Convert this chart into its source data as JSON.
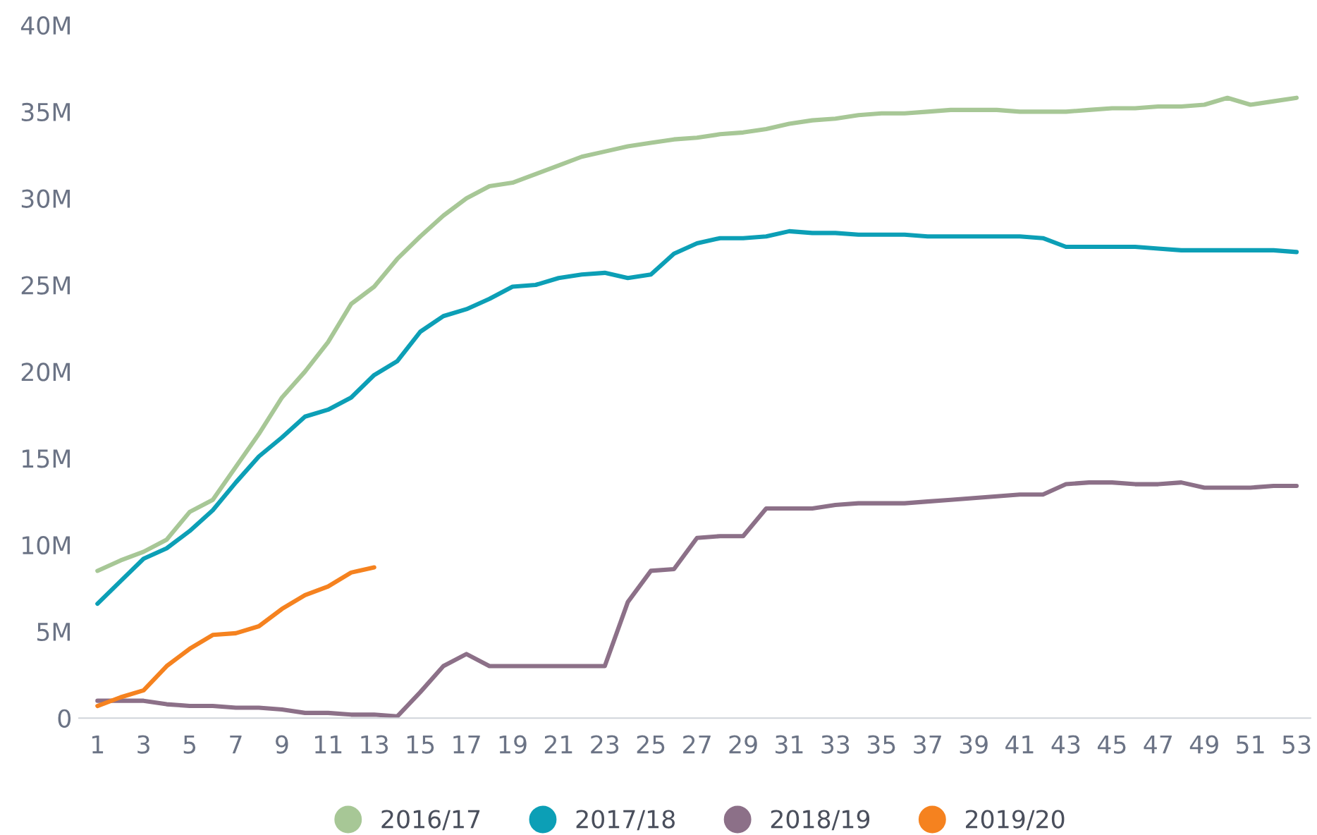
{
  "chart_data": {
    "type": "line",
    "x": [
      1,
      2,
      3,
      4,
      5,
      6,
      7,
      8,
      9,
      10,
      11,
      12,
      13,
      14,
      15,
      16,
      17,
      18,
      19,
      20,
      21,
      22,
      23,
      24,
      25,
      26,
      27,
      28,
      29,
      30,
      31,
      32,
      33,
      34,
      35,
      36,
      37,
      38,
      39,
      40,
      41,
      42,
      43,
      44,
      45,
      46,
      47,
      48,
      49,
      50,
      51,
      52,
      53
    ],
    "series": [
      {
        "name": "2016/17",
        "color": "#a7c796",
        "values": [
          8.5,
          9.1,
          9.6,
          10.3,
          11.9,
          12.6,
          14.5,
          16.4,
          18.5,
          20.0,
          21.7,
          23.9,
          24.9,
          26.5,
          27.8,
          29.0,
          30.0,
          30.7,
          30.9,
          31.4,
          31.9,
          32.4,
          32.7,
          33.0,
          33.2,
          33.4,
          33.5,
          33.7,
          33.8,
          34.0,
          34.3,
          34.5,
          34.6,
          34.8,
          34.9,
          34.9,
          35.0,
          35.1,
          35.1,
          35.1,
          35.0,
          35.0,
          35.0,
          35.1,
          35.2,
          35.2,
          35.3,
          35.3,
          35.4,
          35.8,
          35.4,
          35.6,
          35.8
        ]
      },
      {
        "name": "2017/18",
        "color": "#0c9fb6",
        "values": [
          6.6,
          7.9,
          9.2,
          9.8,
          10.8,
          12.0,
          13.6,
          15.1,
          16.2,
          17.4,
          17.8,
          18.5,
          19.8,
          20.6,
          22.3,
          23.2,
          23.6,
          24.2,
          24.9,
          25.0,
          25.4,
          25.6,
          25.7,
          25.4,
          25.6,
          26.8,
          27.4,
          27.7,
          27.7,
          27.8,
          28.1,
          28.0,
          28.0,
          27.9,
          27.9,
          27.9,
          27.8,
          27.8,
          27.8,
          27.8,
          27.8,
          27.7,
          27.2,
          27.2,
          27.2,
          27.2,
          27.1,
          27.0,
          27.0,
          27.0,
          27.0,
          27.0,
          26.9
        ]
      },
      {
        "name": "2018/19",
        "color": "#8c7088",
        "values": [
          1.0,
          1.0,
          1.0,
          0.8,
          0.7,
          0.7,
          0.6,
          0.6,
          0.5,
          0.3,
          0.3,
          0.2,
          0.2,
          0.1,
          1.5,
          3.0,
          3.7,
          3.0,
          3.0,
          3.0,
          3.0,
          3.0,
          3.0,
          6.7,
          8.5,
          8.6,
          10.4,
          10.5,
          10.5,
          12.1,
          12.1,
          12.1,
          12.3,
          12.4,
          12.4,
          12.4,
          12.5,
          12.6,
          12.7,
          12.8,
          12.9,
          12.9,
          13.5,
          13.6,
          13.6,
          13.5,
          13.5,
          13.6,
          13.3,
          13.3,
          13.3,
          13.4,
          13.4
        ]
      },
      {
        "name": "2019/20",
        "color": "#f5821f",
        "values": [
          0.7,
          1.2,
          1.6,
          3.0,
          4.0,
          4.8,
          4.9,
          5.3,
          6.3,
          7.1,
          7.6,
          8.4,
          8.7,
          null,
          null,
          null,
          null,
          null,
          null,
          null,
          null,
          null,
          null,
          null,
          null,
          null,
          null,
          null,
          null,
          null,
          null,
          null,
          null,
          null,
          null,
          null,
          null,
          null,
          null,
          null,
          null,
          null,
          null,
          null,
          null,
          null,
          null,
          null,
          null,
          null,
          null,
          null,
          null
        ]
      }
    ],
    "xlim": [
      0.2,
      53.6
    ],
    "xticks": [
      1,
      3,
      5,
      7,
      9,
      11,
      13,
      15,
      17,
      19,
      21,
      23,
      25,
      27,
      29,
      31,
      33,
      35,
      37,
      39,
      41,
      43,
      45,
      47,
      49,
      51,
      53
    ],
    "ylim": [
      0,
      40
    ],
    "yticks": [
      {
        "value": 0,
        "label": "0"
      },
      {
        "value": 5,
        "label": "5M"
      },
      {
        "value": 10,
        "label": "10M"
      },
      {
        "value": 15,
        "label": "15M"
      },
      {
        "value": 20,
        "label": "20M"
      },
      {
        "value": 25,
        "label": "25M"
      },
      {
        "value": 30,
        "label": "30M"
      },
      {
        "value": 35,
        "label": "35M"
      },
      {
        "value": 40,
        "label": "40M"
      }
    ],
    "grid": false,
    "legend": "bottom",
    "marker": "none",
    "line_style": "solid"
  }
}
